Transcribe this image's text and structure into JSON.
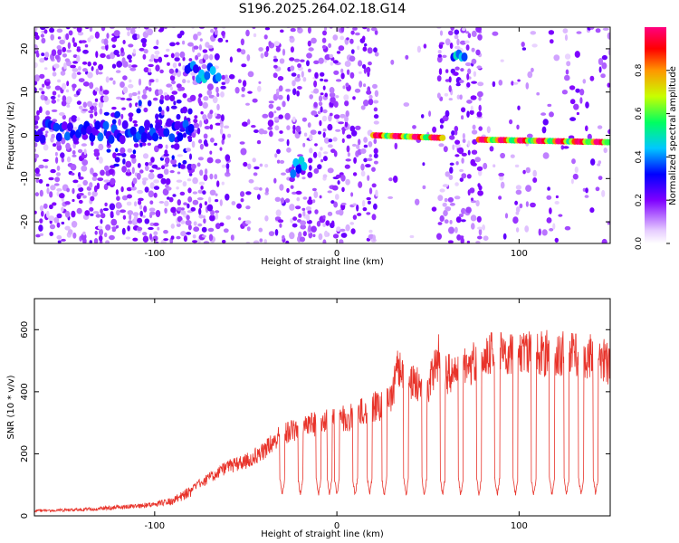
{
  "figure_title": "S196.2025.264.02.18.G14",
  "colors": {
    "snr_line": "#e8332a",
    "axis": "#000000",
    "background": "#ffffff"
  },
  "chart_data": [
    {
      "type": "heatmap",
      "name": "spectrogram",
      "title": "S196.2025.264.02.18.G14",
      "xlabel": "Height of straight line (km)",
      "ylabel": "Frequency (Hz)",
      "xlim": [
        -166,
        150
      ],
      "ylim": [
        -25,
        25
      ],
      "xticks": [
        -100,
        0,
        100
      ],
      "yticks": [
        -20,
        -10,
        0,
        10,
        20
      ],
      "colormap": "rainbow (white-violet-blue-cyan-green-yellow-orange-red-magenta)",
      "colorbar": {
        "label": "Normalized spectral amplitude",
        "range": [
          0,
          1
        ],
        "ticks": [
          0.0,
          0.2,
          0.4,
          0.6,
          0.8
        ]
      },
      "features": [
        {
          "x_range": [
            -166,
            -80
          ],
          "freq": 1,
          "amplitude": 0.35,
          "note": "speckled violet noise, bright cluster near -120 to -80 km"
        },
        {
          "x_range": [
            -82,
            -65
          ],
          "freq": 15,
          "amplitude": 0.45,
          "note": "blob near +15 Hz"
        },
        {
          "x_range": [
            -24,
            -18
          ],
          "freq": -7,
          "amplitude": 0.45,
          "note": "blob near -7 Hz"
        },
        {
          "x_range": [
            20,
            58
          ],
          "freq": 0,
          "amplitude": 1.0,
          "note": "strong carrier line"
        },
        {
          "x_range": [
            64,
            70
          ],
          "freq": 20,
          "amplitude": 0.45,
          "note": "blob near +20 Hz"
        },
        {
          "x_range": [
            78,
            150
          ],
          "freq": -1,
          "amplitude": 1.0,
          "note": "strong carrier line, slightly decreasing"
        }
      ]
    },
    {
      "type": "line",
      "name": "snr",
      "xlabel": "Height of straight line (km)",
      "ylabel": "SNR (10 * v/v)",
      "xlim": [
        -166,
        150
      ],
      "ylim": [
        0,
        700
      ],
      "xticks": [
        -100,
        0,
        100
      ],
      "yticks": [
        0,
        200,
        400,
        600
      ],
      "x": [
        -166,
        -140,
        -120,
        -100,
        -90,
        -80,
        -70,
        -60,
        -50,
        -40,
        -30,
        -20,
        -10,
        0,
        10,
        20,
        30,
        33,
        40,
        50,
        57,
        60,
        70,
        80,
        90,
        100,
        110,
        120,
        130,
        140,
        150
      ],
      "y": [
        20,
        25,
        35,
        45,
        60,
        100,
        140,
        180,
        200,
        240,
        300,
        330,
        340,
        350,
        370,
        400,
        420,
        560,
        500,
        470,
        610,
        520,
        540,
        590,
        600,
        610,
        600,
        600,
        590,
        590,
        560
      ],
      "dropouts_x": [
        -30,
        -20,
        -10,
        -4,
        0,
        10,
        18,
        26,
        38,
        48,
        58,
        68,
        78,
        88,
        98,
        108,
        118,
        126,
        134,
        142
      ],
      "dropout_level": 60
    }
  ]
}
